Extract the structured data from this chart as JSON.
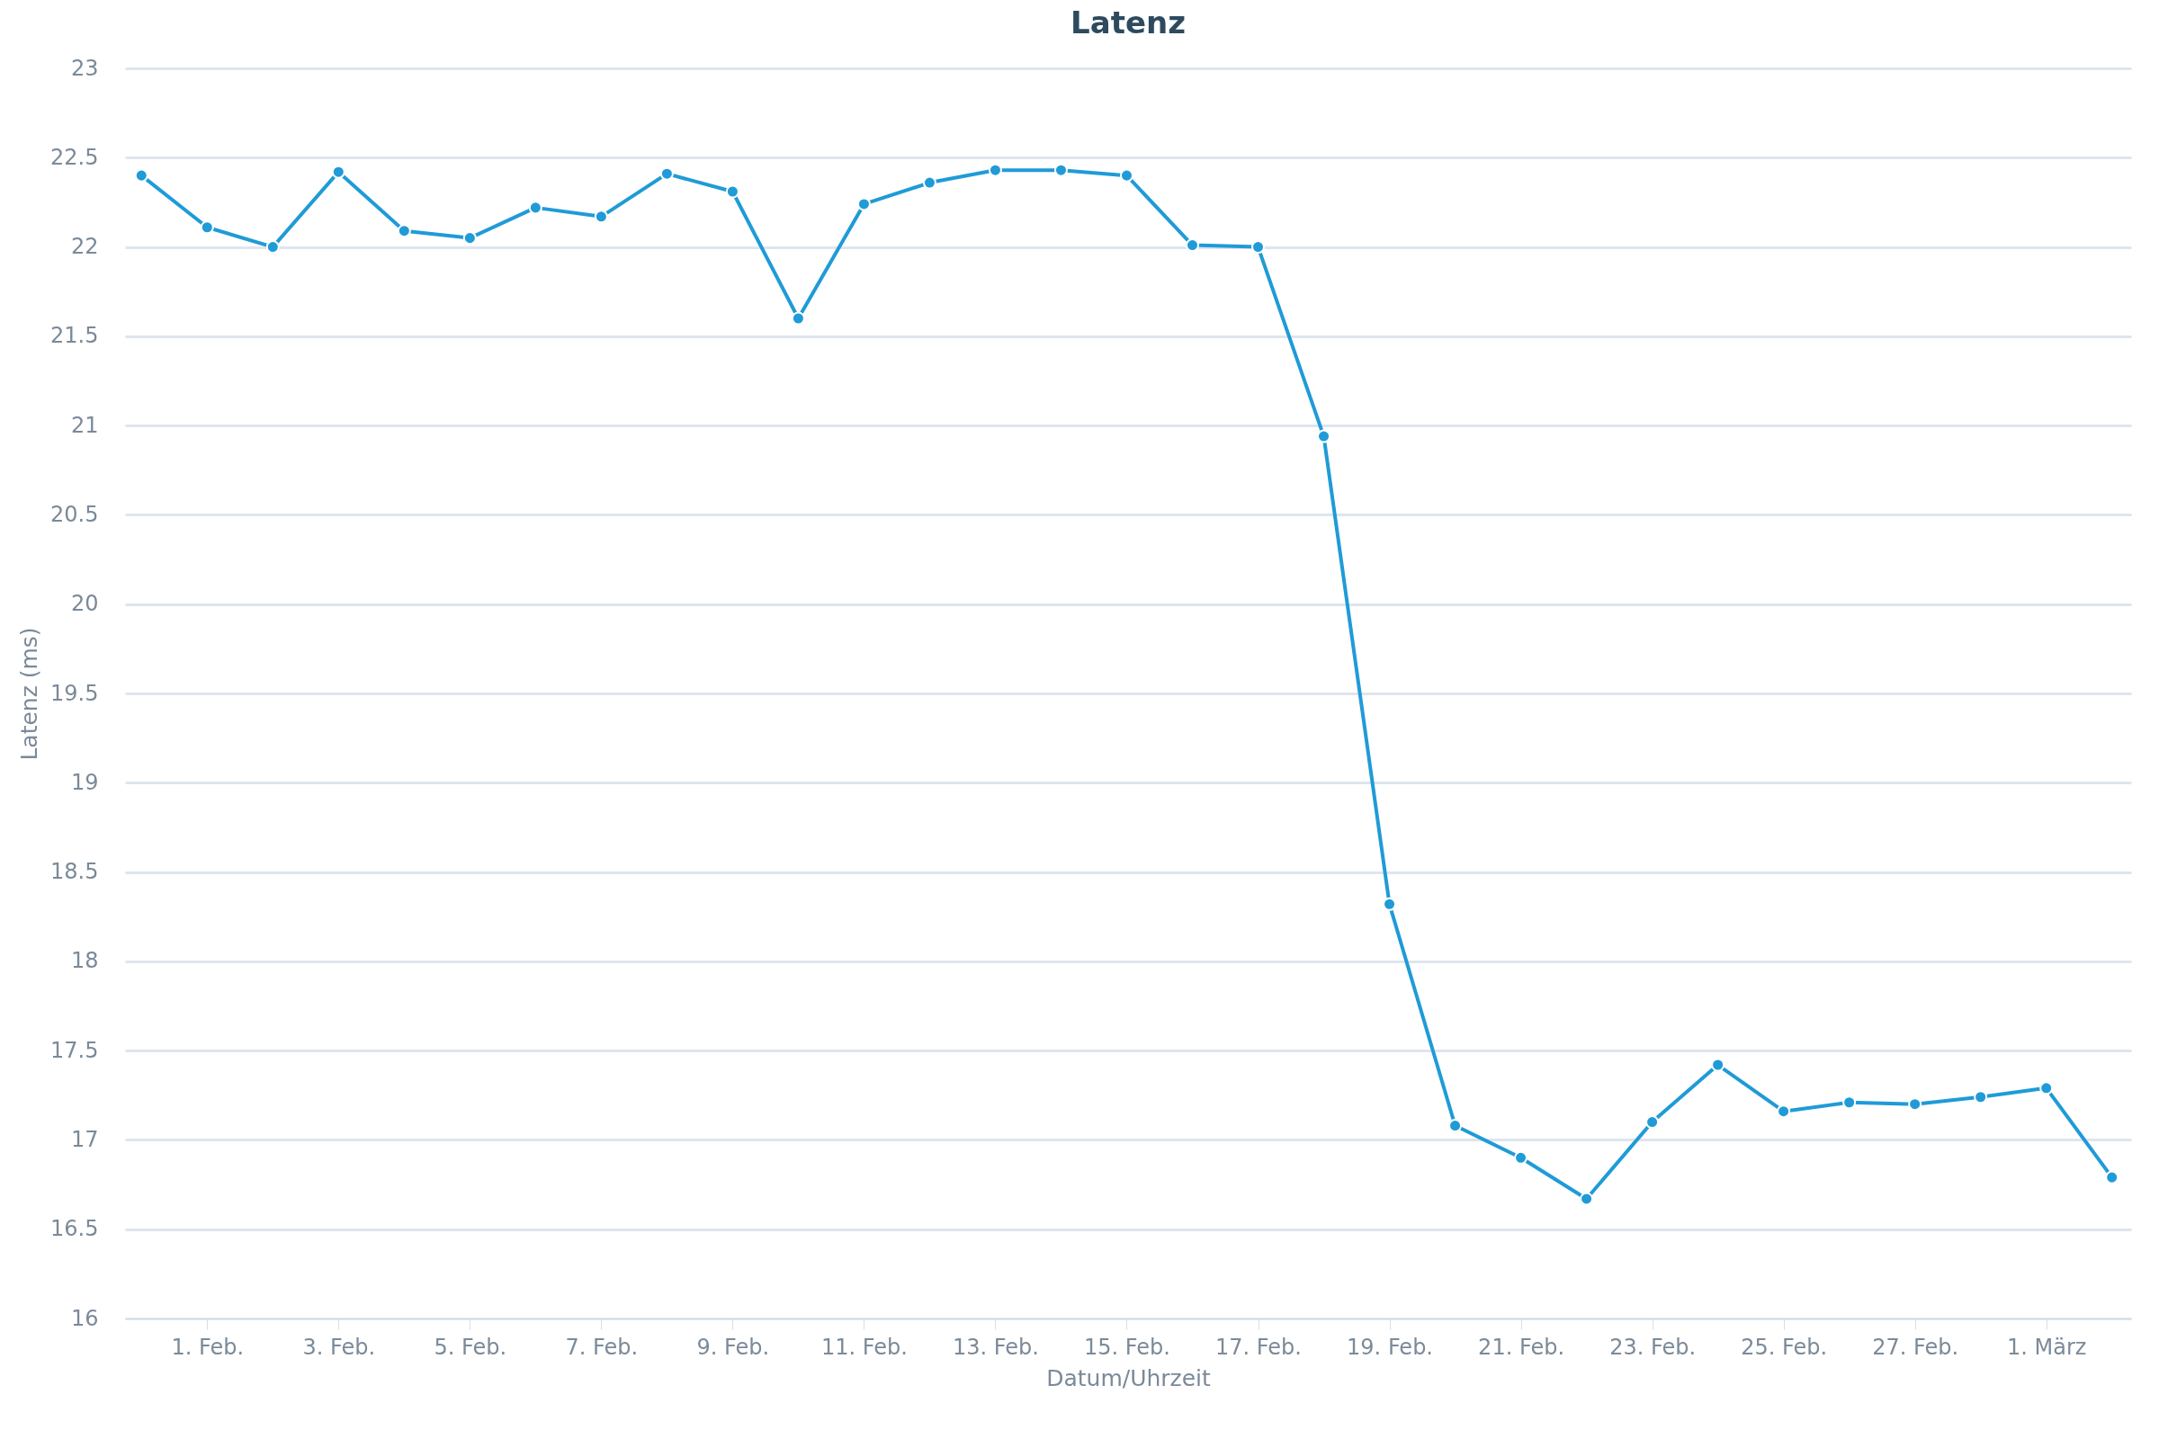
{
  "chart_data": {
    "type": "line",
    "title": "Latenz",
    "xlabel": "Datum/Uhrzeit",
    "ylabel": "Latenz (ms)",
    "x": [
      "--01-31",
      "--02-01",
      "--02-02",
      "--02-03",
      "--02-04",
      "--02-05",
      "--02-06",
      "--02-07",
      "--02-08",
      "--02-09",
      "--02-10",
      "--02-11",
      "--02-12",
      "--02-13",
      "--02-14",
      "--02-15",
      "--02-16",
      "--02-17",
      "--02-18",
      "--02-19",
      "--02-20",
      "--02-21",
      "--02-22",
      "--02-23",
      "--02-24",
      "--02-25",
      "--02-26",
      "--02-27",
      "--02-28",
      "--03-01",
      "--03-02"
    ],
    "series": [
      {
        "color": "#1f9bd7",
        "values": [
          22.4,
          22.11,
          22.0,
          22.42,
          22.09,
          22.05,
          22.22,
          22.17,
          22.41,
          22.31,
          21.6,
          22.24,
          22.36,
          22.43,
          22.43,
          22.4,
          22.01,
          22.0,
          20.94,
          18.32,
          17.08,
          16.9,
          16.67,
          17.1,
          17.42,
          17.16,
          17.21,
          17.2,
          17.24,
          17.29,
          16.79
        ]
      }
    ],
    "xlim": [
      "--01-30T18:00",
      "--03-02T07:00"
    ],
    "xticks": [
      {
        "value": "--02-01",
        "label": "1. Feb."
      },
      {
        "value": "--02-03",
        "label": "3. Feb."
      },
      {
        "value": "--02-05",
        "label": "5. Feb."
      },
      {
        "value": "--02-07",
        "label": "7. Feb."
      },
      {
        "value": "--02-09",
        "label": "9. Feb."
      },
      {
        "value": "--02-11",
        "label": "11. Feb."
      },
      {
        "value": "--02-13",
        "label": "13. Feb."
      },
      {
        "value": "--02-15",
        "label": "15. Feb."
      },
      {
        "value": "--02-17",
        "label": "17. Feb."
      },
      {
        "value": "--02-19",
        "label": "19. Feb."
      },
      {
        "value": "--02-21",
        "label": "21. Feb."
      },
      {
        "value": "--02-23",
        "label": "23. Feb."
      },
      {
        "value": "--02-25",
        "label": "25. Feb."
      },
      {
        "value": "--02-27",
        "label": "27. Feb."
      },
      {
        "value": "--03-01",
        "label": "1. März"
      }
    ],
    "ylim": [
      16,
      23
    ],
    "yticks": [
      16,
      16.5,
      17,
      17.5,
      18,
      18.5,
      19,
      19.5,
      20,
      20.5,
      21,
      21.5,
      22,
      22.5,
      23
    ],
    "grid": "y",
    "marker": "circle",
    "line_style": "solid",
    "legend": false
  }
}
